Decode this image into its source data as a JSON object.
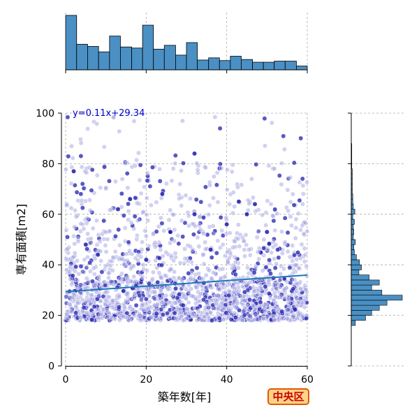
{
  "chart_data": {
    "type": "scatter",
    "xlabel": "築年数[年]",
    "ylabel": "専有面積[m2]",
    "xlim": [
      0,
      60
    ],
    "ylim": [
      0,
      100
    ],
    "xticks": [
      "0",
      "20",
      "40",
      "60"
    ],
    "yticks": [
      "0",
      "20",
      "40",
      "60",
      "80",
      "100"
    ],
    "grid": true,
    "regression": {
      "label": "y=0.11x+29.34",
      "slope": 0.11,
      "intercept": 29.34
    },
    "point_color": "#3333cc",
    "bar_color": "#4a90c4",
    "line_color": "#1f77b4",
    "x_histogram": {
      "bin_edges": [
        0,
        2.73,
        5.45,
        8.18,
        10.9,
        13.6,
        16.4,
        19.1,
        21.8,
        24.5,
        27.3,
        30,
        32.7,
        35.5,
        38.2,
        40.9,
        43.6,
        46.4,
        49.1,
        51.8,
        54.5,
        57.3,
        60
      ],
      "counts": [
        100,
        47,
        43,
        33,
        62,
        42,
        40,
        82,
        38,
        45,
        27,
        50,
        18,
        22,
        17,
        25,
        19,
        14,
        14,
        16,
        16,
        7
      ]
    },
    "y_histogram": {
      "bin_edges": [
        16,
        18,
        20,
        22,
        24,
        26,
        28,
        30,
        32,
        34,
        36,
        38,
        40,
        42,
        44,
        46,
        48,
        50,
        52,
        54,
        56,
        58,
        60,
        62,
        64,
        66,
        68,
        70,
        72,
        74,
        76,
        78,
        80,
        82,
        84,
        86,
        88
      ],
      "counts": [
        8,
        28,
        40,
        55,
        70,
        100,
        60,
        40,
        55,
        35,
        15,
        20,
        16,
        10,
        6,
        5,
        8,
        4,
        5,
        4,
        6,
        3,
        7,
        4,
        3,
        3,
        2,
        2,
        2,
        2,
        2,
        1,
        1,
        1,
        1,
        1
      ]
    },
    "point_clusters": [
      {
        "x": [
          0,
          60
        ],
        "y": [
          18,
          34
        ],
        "count": 1300,
        "weight": 1
      },
      {
        "x": [
          0,
          60
        ],
        "y": [
          34,
          55
        ],
        "count": 450,
        "weight": 1
      },
      {
        "x": [
          0,
          60
        ],
        "y": [
          55,
          80
        ],
        "count": 220,
        "weight": 1
      },
      {
        "x": [
          0,
          60
        ],
        "y": [
          80,
          100
        ],
        "count": 35,
        "weight": 1
      }
    ],
    "highlighted_points": [
      {
        "x": 2,
        "y": 77
      },
      {
        "x": 13,
        "y": 62
      },
      {
        "x": 16,
        "y": 66
      },
      {
        "x": 24,
        "y": 68
      },
      {
        "x": 32,
        "y": 60
      },
      {
        "x": 40,
        "y": 56
      },
      {
        "x": 43,
        "y": 65
      },
      {
        "x": 45,
        "y": 60
      },
      {
        "x": 47,
        "y": 64
      },
      {
        "x": 50,
        "y": 53
      },
      {
        "x": 26,
        "y": 53
      },
      {
        "x": 32,
        "y": 84
      },
      {
        "x": 5,
        "y": 48
      },
      {
        "x": 8,
        "y": 44
      },
      {
        "x": 20,
        "y": 42
      },
      {
        "x": 36,
        "y": 46
      }
    ]
  },
  "badge": {
    "label": "中央区"
  }
}
